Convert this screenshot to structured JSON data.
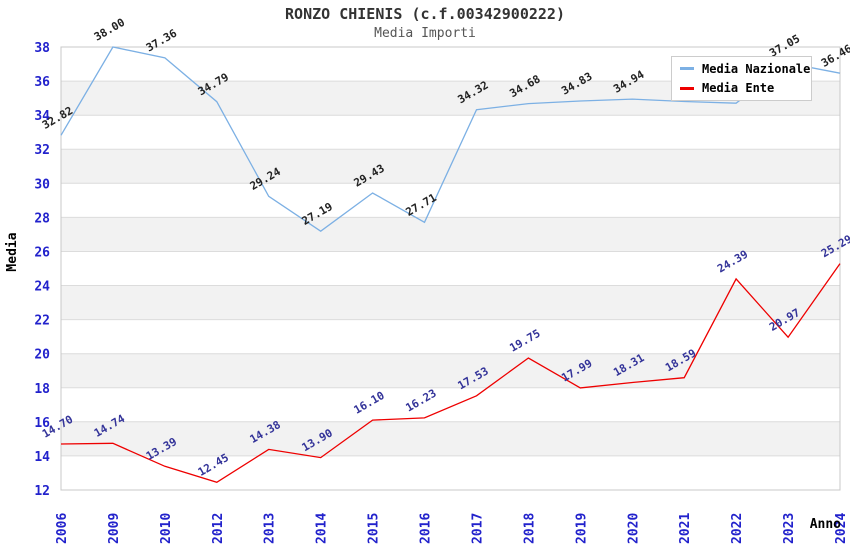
{
  "header": {
    "title": "RONZO CHIENIS (c.f.00342900222)",
    "subtitle": "Media Importi"
  },
  "legend": {
    "items": [
      {
        "label": "Media Nazionale",
        "color": "#7cb0e4"
      },
      {
        "label": "Media Ente",
        "color": "#ee0000"
      }
    ]
  },
  "chart_data": {
    "type": "line",
    "title": "RONZO CHIENIS (c.f.00342900222)",
    "subtitle": "Media Importi",
    "xlabel": "Anno",
    "ylabel": "Media",
    "x_categories": [
      "2006",
      "2009",
      "2010",
      "2012",
      "2013",
      "2014",
      "2015",
      "2016",
      "2017",
      "2018",
      "2019",
      "2020",
      "2021",
      "2022",
      "2023",
      "2024"
    ],
    "series": [
      {
        "name": "Media Nazionale",
        "color": "#7cb0e4",
        "label_color": "#222222",
        "values": [
          32.82,
          38.0,
          37.36,
          34.79,
          29.24,
          27.19,
          29.43,
          27.71,
          34.32,
          34.68,
          34.83,
          34.94,
          34.8,
          34.7,
          37.05,
          36.46
        ],
        "point_labels": [
          "32.82",
          "38.00",
          "37.36",
          "34.79",
          "29.24",
          "27.19",
          "29.43",
          "27.71",
          "34.32",
          "34.68",
          "34.83",
          "34.94",
          null,
          null,
          "37.05",
          "36.46"
        ]
      },
      {
        "name": "Media Ente",
        "color": "#ee0000",
        "label_color": "#333399",
        "values": [
          14.7,
          14.74,
          13.39,
          12.45,
          14.38,
          13.9,
          16.1,
          16.23,
          17.53,
          19.75,
          17.99,
          18.31,
          18.59,
          24.39,
          20.97,
          25.29
        ],
        "point_labels": [
          "14.70",
          "14.74",
          "13.39",
          "12.45",
          "14.38",
          "13.90",
          "16.10",
          "16.23",
          "17.53",
          "19.75",
          "17.99",
          "18.31",
          "18.59",
          "24.39",
          "20.97",
          "25.29"
        ]
      }
    ],
    "ylim": [
      12,
      38
    ],
    "ytick_step": 2,
    "yticks": [
      12,
      14,
      16,
      18,
      20,
      22,
      24,
      26,
      28,
      30,
      32,
      34,
      36,
      38
    ],
    "grid": true,
    "legend_position": "top-right",
    "colors": {
      "band": "#f2f2f2",
      "gridline": "#dcdcdc",
      "plot_border": "#c8c8c8",
      "axis_tick_label": "#2222cc",
      "axis_title": "#000000",
      "title": "#333333",
      "subtitle": "#555555"
    }
  }
}
